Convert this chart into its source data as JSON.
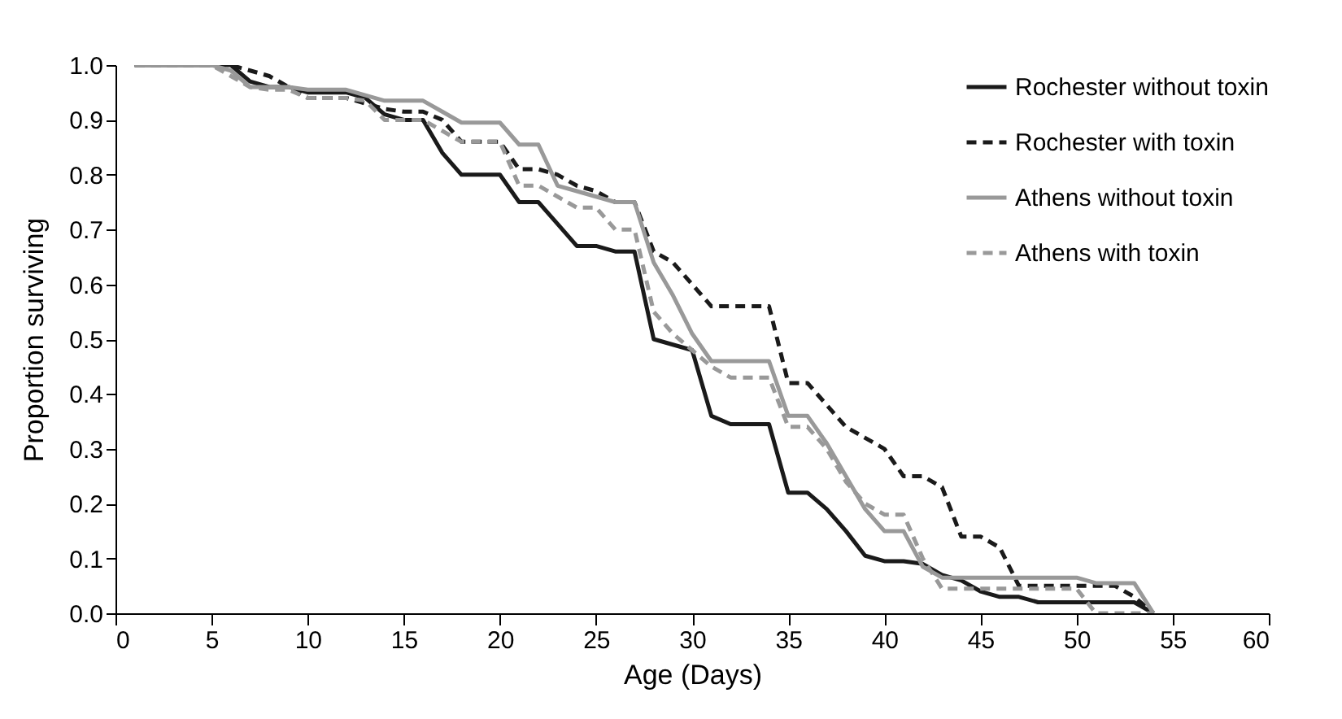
{
  "chart_data": {
    "type": "line",
    "xlabel": "Age (Days)",
    "ylabel": "Proportion surviving",
    "x": [
      1,
      2,
      3,
      4,
      5,
      6,
      7,
      8,
      9,
      10,
      11,
      12,
      13,
      14,
      15,
      16,
      17,
      18,
      19,
      20,
      21,
      22,
      23,
      24,
      25,
      26,
      27,
      28,
      29,
      30,
      31,
      32,
      33,
      34,
      35,
      36,
      37,
      38,
      39,
      40,
      41,
      42,
      43,
      44,
      45,
      46,
      47,
      48,
      49,
      50,
      51,
      52,
      53,
      54
    ],
    "series": [
      {
        "name": "Rochester without toxin",
        "color": "#1a1a1a",
        "line_style": "solid",
        "values": [
          1,
          1,
          1,
          1,
          1,
          1,
          0.97,
          0.96,
          0.96,
          0.95,
          0.95,
          0.95,
          0.94,
          0.91,
          0.9,
          0.9,
          0.84,
          0.8,
          0.8,
          0.8,
          0.75,
          0.75,
          0.71,
          0.67,
          0.67,
          0.66,
          0.66,
          0.5,
          0.49,
          0.48,
          0.36,
          0.345,
          0.345,
          0.345,
          0.22,
          0.22,
          0.19,
          0.15,
          0.105,
          0.095,
          0.095,
          0.09,
          0.07,
          0.06,
          0.04,
          0.03,
          0.03,
          0.02,
          0.02,
          0.02,
          0.02,
          0.02,
          0.02,
          0
        ]
      },
      {
        "name": "Rochester with toxin",
        "color": "#1a1a1a",
        "line_style": "dashed",
        "values": [
          1,
          1,
          1,
          1,
          1,
          1,
          0.99,
          0.98,
          0.96,
          0.94,
          0.94,
          0.94,
          0.93,
          0.92,
          0.915,
          0.915,
          0.9,
          0.86,
          0.86,
          0.86,
          0.81,
          0.81,
          0.8,
          0.78,
          0.77,
          0.75,
          0.75,
          0.66,
          0.64,
          0.6,
          0.56,
          0.56,
          0.56,
          0.56,
          0.42,
          0.42,
          0.38,
          0.34,
          0.32,
          0.3,
          0.25,
          0.25,
          0.23,
          0.14,
          0.14,
          0.12,
          0.05,
          0.05,
          0.05,
          0.05,
          0.05,
          0.05,
          0.03,
          0
        ]
      },
      {
        "name": "Athens without toxin",
        "color": "#999999",
        "line_style": "solid",
        "values": [
          1,
          1,
          1,
          1,
          1,
          0.99,
          0.96,
          0.96,
          0.96,
          0.955,
          0.955,
          0.955,
          0.945,
          0.935,
          0.935,
          0.935,
          0.915,
          0.895,
          0.895,
          0.895,
          0.855,
          0.855,
          0.78,
          0.77,
          0.76,
          0.75,
          0.75,
          0.64,
          0.58,
          0.51,
          0.46,
          0.46,
          0.46,
          0.46,
          0.36,
          0.36,
          0.31,
          0.25,
          0.19,
          0.15,
          0.15,
          0.085,
          0.065,
          0.065,
          0.065,
          0.065,
          0.065,
          0.065,
          0.065,
          0.065,
          0.055,
          0.055,
          0.055,
          0
        ]
      },
      {
        "name": "Athens with toxin",
        "color": "#999999",
        "line_style": "dashed",
        "values": [
          1,
          1,
          1,
          1,
          1,
          0.98,
          0.96,
          0.955,
          0.955,
          0.94,
          0.94,
          0.94,
          0.935,
          0.9,
          0.9,
          0.9,
          0.88,
          0.86,
          0.86,
          0.86,
          0.78,
          0.78,
          0.76,
          0.74,
          0.74,
          0.7,
          0.7,
          0.55,
          0.51,
          0.48,
          0.45,
          0.43,
          0.43,
          0.43,
          0.34,
          0.34,
          0.3,
          0.24,
          0.2,
          0.18,
          0.18,
          0.1,
          0.045,
          0.045,
          0.045,
          0.045,
          0.045,
          0.045,
          0.045,
          0.045,
          0,
          0,
          0,
          0
        ]
      }
    ],
    "xlim": [
      0,
      60
    ],
    "xticks": [
      0,
      5,
      10,
      15,
      20,
      25,
      30,
      35,
      40,
      45,
      50,
      55,
      60
    ],
    "ylim": [
      0,
      1
    ],
    "yticks": [
      {
        "value": 0,
        "label": "0.0"
      },
      {
        "value": 0.1,
        "label": "0.1"
      },
      {
        "value": 0.2,
        "label": "0.2"
      },
      {
        "value": 0.3,
        "label": "0.3"
      },
      {
        "value": 0.4,
        "label": "0.4"
      },
      {
        "value": 0.5,
        "label": "0.5"
      },
      {
        "value": 0.6,
        "label": "0.6"
      },
      {
        "value": 0.7,
        "label": "0.7"
      },
      {
        "value": 0.8,
        "label": "0.8"
      },
      {
        "value": 0.9,
        "label": "0.9"
      },
      {
        "value": 1,
        "label": "1.0"
      }
    ],
    "grid": false,
    "legend": "top right",
    "marker": "none"
  }
}
